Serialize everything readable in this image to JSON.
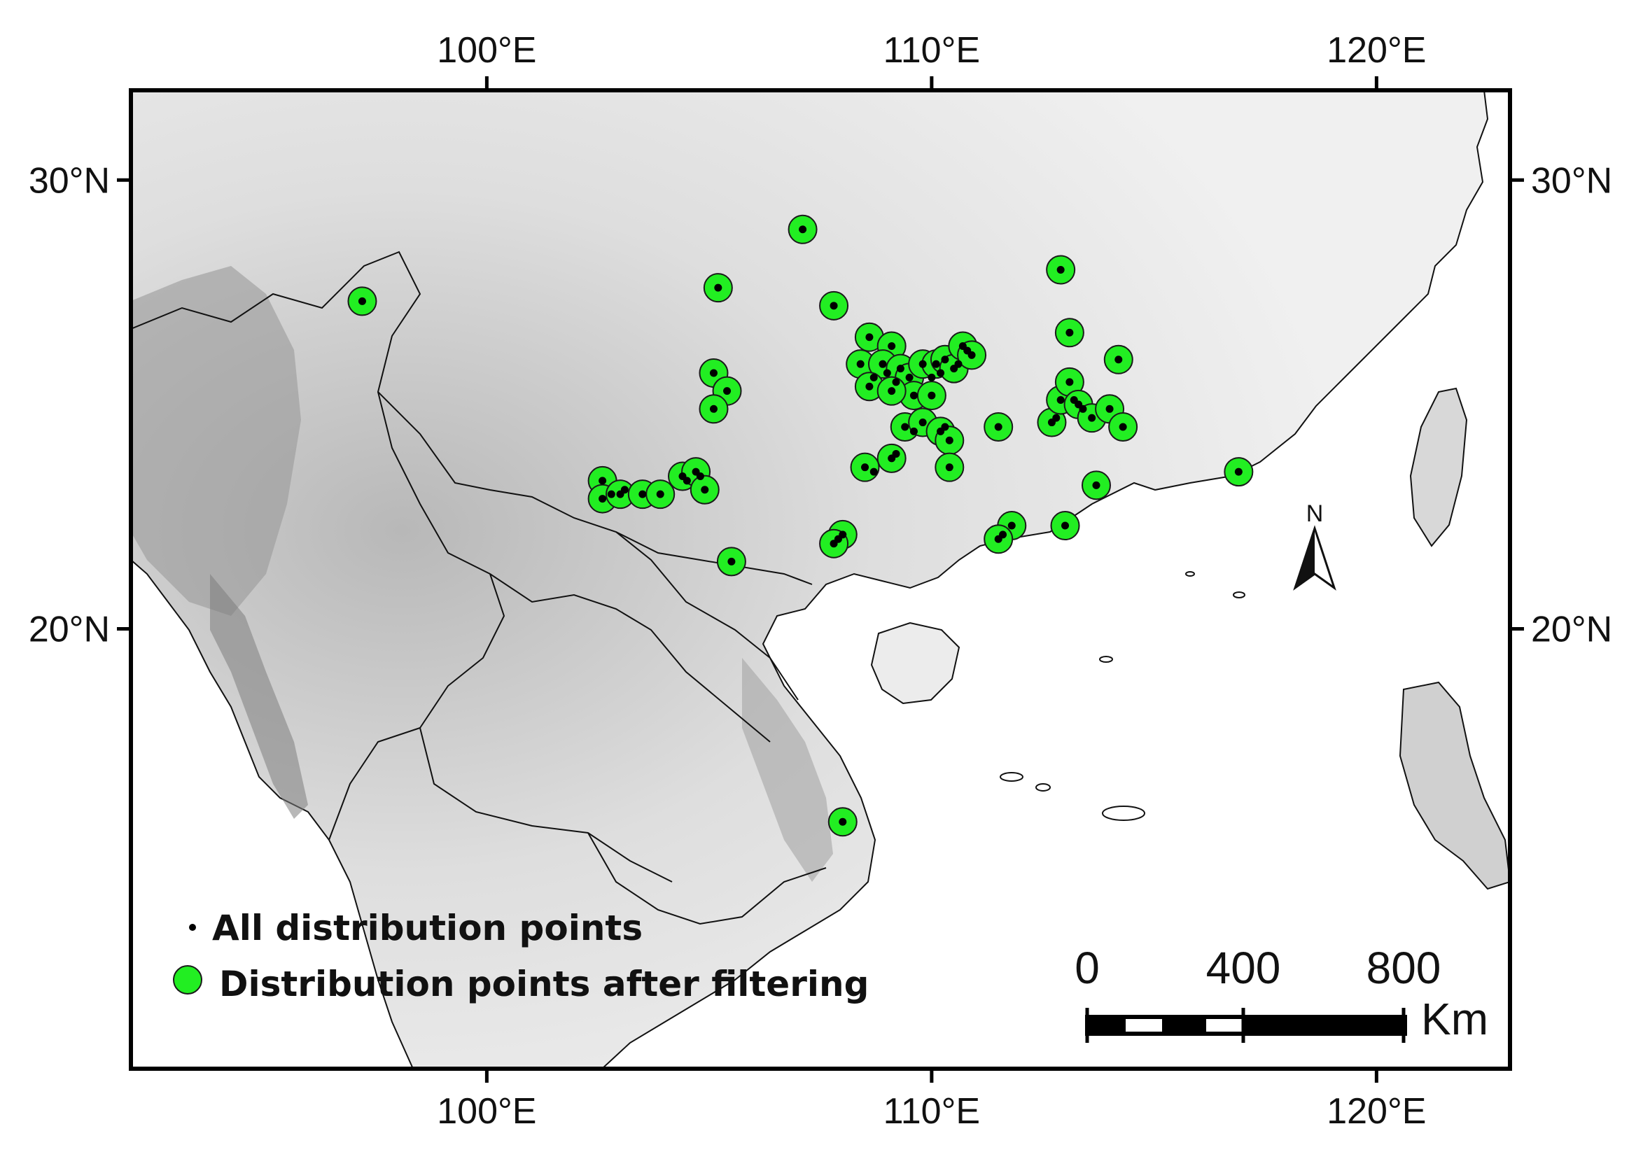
{
  "map": {
    "x_ticks": [
      {
        "lon": 100,
        "label": "100°E"
      },
      {
        "lon": 110,
        "label": "110°E"
      },
      {
        "lon": 120,
        "label": "120°E"
      }
    ],
    "y_ticks": [
      {
        "lat": 30,
        "label": "30°N"
      },
      {
        "lat": 20,
        "label": "20°N"
      }
    ],
    "lon_range": [
      92.0,
      123.0
    ],
    "lat_range": [
      10.2,
      32.0
    ],
    "legend": {
      "all_points_label": "All distribution points",
      "filtered_points_label": "Distribution points after filtering"
    },
    "scale_bar": {
      "labels": [
        "0",
        "400",
        "800"
      ],
      "unit": "Km"
    },
    "north_arrow_label": "N",
    "colors": {
      "filtered_point_fill": "#22ee22",
      "point_stroke": "#1a1a1a",
      "all_point_fill": "#000000",
      "sea": "#ffffff",
      "land_light": "#ededed",
      "land_dark": "#5a5a5a"
    }
  },
  "chart_data": {
    "type": "scatter",
    "x_unit": "degrees East",
    "y_unit": "degrees North",
    "series": [
      {
        "name": "Distribution points after filtering",
        "points": [
          [
            97.2,
            27.3
          ],
          [
            107.1,
            28.9
          ],
          [
            105.2,
            27.6
          ],
          [
            107.8,
            27.2
          ],
          [
            112.9,
            28.0
          ],
          [
            113.1,
            26.6
          ],
          [
            114.2,
            26.0
          ],
          [
            108.6,
            26.5
          ],
          [
            109.1,
            26.3
          ],
          [
            108.4,
            25.9
          ],
          [
            108.9,
            25.9
          ],
          [
            109.3,
            25.8
          ],
          [
            108.6,
            25.4
          ],
          [
            109.5,
            25.6
          ],
          [
            109.8,
            25.9
          ],
          [
            110.1,
            25.9
          ],
          [
            110.3,
            26.0
          ],
          [
            110.5,
            25.8
          ],
          [
            110.7,
            26.3
          ],
          [
            110.9,
            26.1
          ],
          [
            109.6,
            25.2
          ],
          [
            110.0,
            25.2
          ],
          [
            109.1,
            25.3
          ],
          [
            109.4,
            24.5
          ],
          [
            109.8,
            24.6
          ],
          [
            110.2,
            24.4
          ],
          [
            110.4,
            24.2
          ],
          [
            109.1,
            23.8
          ],
          [
            108.5,
            23.6
          ],
          [
            110.4,
            23.6
          ],
          [
            111.5,
            24.5
          ],
          [
            112.7,
            24.6
          ],
          [
            112.9,
            25.1
          ],
          [
            113.1,
            25.5
          ],
          [
            113.3,
            25.0
          ],
          [
            113.6,
            24.7
          ],
          [
            114.0,
            24.9
          ],
          [
            114.3,
            24.5
          ],
          [
            113.7,
            23.2
          ],
          [
            113.0,
            22.3
          ],
          [
            111.8,
            22.3
          ],
          [
            111.5,
            22.0
          ],
          [
            108.0,
            22.1
          ],
          [
            107.8,
            21.9
          ],
          [
            116.9,
            23.5
          ],
          [
            105.1,
            25.7
          ],
          [
            105.4,
            25.3
          ],
          [
            105.1,
            24.9
          ],
          [
            102.6,
            23.3
          ],
          [
            102.6,
            22.9
          ],
          [
            103.0,
            23.0
          ],
          [
            103.5,
            23.0
          ],
          [
            103.9,
            23.0
          ],
          [
            104.4,
            23.4
          ],
          [
            104.7,
            23.5
          ],
          [
            104.9,
            23.1
          ],
          [
            105.5,
            21.5
          ],
          [
            108.0,
            15.7
          ]
        ]
      },
      {
        "name": "All distribution points",
        "points": [
          [
            97.2,
            27.3
          ],
          [
            107.1,
            28.9
          ],
          [
            105.2,
            27.6
          ],
          [
            107.8,
            27.2
          ],
          [
            112.9,
            28.0
          ],
          [
            113.1,
            26.6
          ],
          [
            114.2,
            26.0
          ],
          [
            108.6,
            26.5
          ],
          [
            109.1,
            26.3
          ],
          [
            108.4,
            25.9
          ],
          [
            108.9,
            25.9
          ],
          [
            109.3,
            25.8
          ],
          [
            108.6,
            25.4
          ],
          [
            109.5,
            25.6
          ],
          [
            109.8,
            25.9
          ],
          [
            110.1,
            25.9
          ],
          [
            110.3,
            26.0
          ],
          [
            110.5,
            25.8
          ],
          [
            110.7,
            26.3
          ],
          [
            110.9,
            26.1
          ],
          [
            109.6,
            25.2
          ],
          [
            110.0,
            25.2
          ],
          [
            109.1,
            25.3
          ],
          [
            109.4,
            24.5
          ],
          [
            109.8,
            24.6
          ],
          [
            110.2,
            24.4
          ],
          [
            110.4,
            24.2
          ],
          [
            109.1,
            23.8
          ],
          [
            108.5,
            23.6
          ],
          [
            110.4,
            23.6
          ],
          [
            111.5,
            24.5
          ],
          [
            112.7,
            24.6
          ],
          [
            112.9,
            25.1
          ],
          [
            113.1,
            25.5
          ],
          [
            113.3,
            25.0
          ],
          [
            113.6,
            24.7
          ],
          [
            114.0,
            24.9
          ],
          [
            114.3,
            24.5
          ],
          [
            113.7,
            23.2
          ],
          [
            113.0,
            22.3
          ],
          [
            111.8,
            22.3
          ],
          [
            111.5,
            22.0
          ],
          [
            108.0,
            22.1
          ],
          [
            107.8,
            21.9
          ],
          [
            116.9,
            23.5
          ],
          [
            105.1,
            25.7
          ],
          [
            105.4,
            25.3
          ],
          [
            105.1,
            24.9
          ],
          [
            102.6,
            23.3
          ],
          [
            102.6,
            22.9
          ],
          [
            103.0,
            23.0
          ],
          [
            103.5,
            23.0
          ],
          [
            103.9,
            23.0
          ],
          [
            104.4,
            23.4
          ],
          [
            104.7,
            23.5
          ],
          [
            104.9,
            23.1
          ],
          [
            105.5,
            21.5
          ],
          [
            108.0,
            15.7
          ],
          [
            108.7,
            25.6
          ],
          [
            109.0,
            25.7
          ],
          [
            109.2,
            25.5
          ],
          [
            110.0,
            25.6
          ],
          [
            110.2,
            25.7
          ],
          [
            109.6,
            24.4
          ],
          [
            110.3,
            24.5
          ],
          [
            108.7,
            23.5
          ],
          [
            109.2,
            23.9
          ],
          [
            112.8,
            24.7
          ],
          [
            113.2,
            25.1
          ],
          [
            113.4,
            24.9
          ],
          [
            103.1,
            23.1
          ],
          [
            102.8,
            23.0
          ],
          [
            104.5,
            23.3
          ],
          [
            104.8,
            23.4
          ],
          [
            107.9,
            22.0
          ],
          [
            111.6,
            22.1
          ],
          [
            110.8,
            26.2
          ],
          [
            110.6,
            25.9
          ]
        ]
      }
    ]
  }
}
